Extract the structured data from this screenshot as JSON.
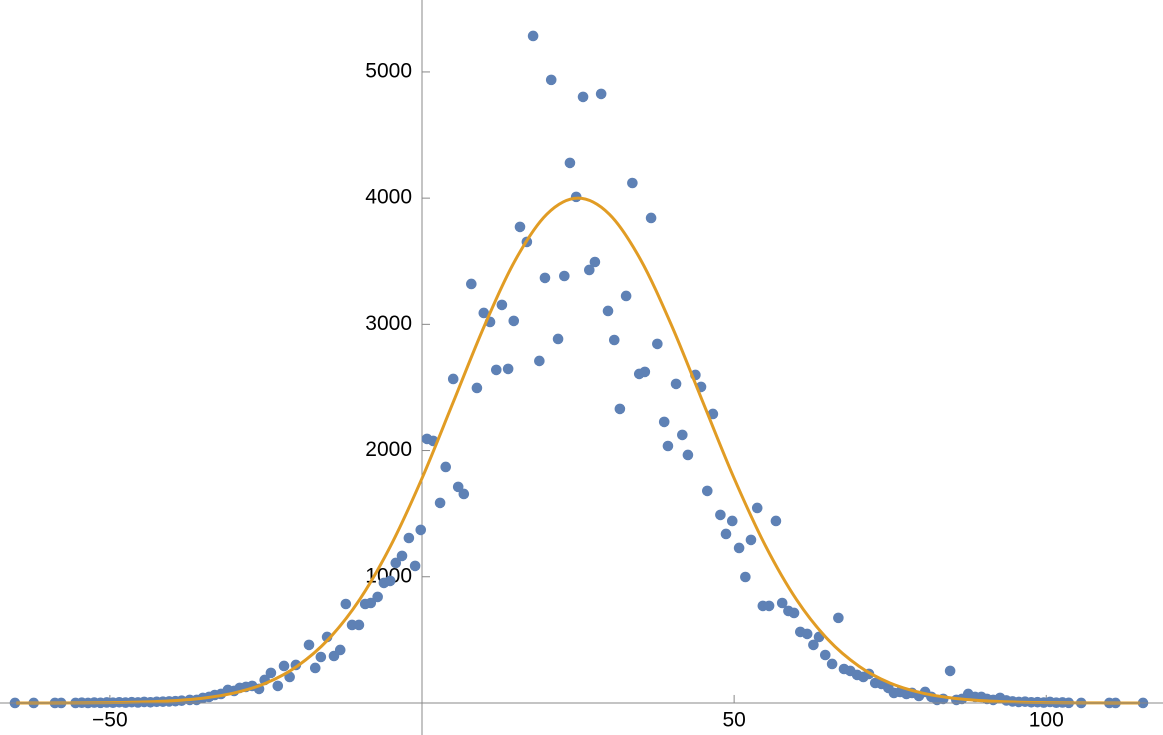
{
  "chart_data": {
    "type": "scatter",
    "xlim": [
      -67.6,
      118.7
    ],
    "ylim": [
      -254,
      5570
    ],
    "xticks": [
      {
        "value": -50,
        "label": "−50"
      },
      50,
      100
    ],
    "yticks": [
      1000,
      2000,
      3000,
      4000,
      5000
    ],
    "series": [
      {
        "color": "#5e81b5",
        "x": [
          -65.2,
          -62.2,
          -58.8,
          -57.8,
          -55.5,
          -54.5,
          -53.5,
          -52.5,
          -51.5,
          -50.5,
          -49.5,
          -48.5,
          -47.5,
          -46.5,
          -45.5,
          -44.5,
          -43.5,
          -42.5,
          -41.5,
          -40.5,
          -39.5,
          -38.5,
          -37.2,
          -36.1,
          -35.1,
          -34.1,
          -33.2,
          -32.2,
          -31.1,
          -30.1,
          -29.2,
          -28.2,
          -27.2,
          -26.1,
          -25.2,
          -24.2,
          -23.1,
          -22.1,
          -21.2,
          -20.2,
          -18.1,
          -17.1,
          -16.2,
          -15.2,
          -14.1,
          -13.1,
          -12.2,
          -11.2,
          -10.1,
          -9.1,
          -8.2,
          -7.1,
          -6.1,
          -5.1,
          -4.2,
          -3.2,
          -2.1,
          -1.1,
          -0.2,
          0.8,
          1.8,
          2.9,
          3.8,
          5.0,
          5.8,
          6.7,
          7.9,
          8.8,
          9.9,
          10.9,
          11.9,
          12.8,
          13.8,
          14.7,
          15.7,
          16.8,
          17.8,
          18.8,
          19.7,
          20.7,
          21.8,
          22.8,
          23.7,
          24.7,
          25.8,
          26.8,
          27.7,
          28.7,
          29.8,
          30.8,
          31.7,
          32.7,
          33.7,
          34.8,
          35.7,
          36.7,
          37.7,
          38.8,
          39.4,
          40.7,
          41.7,
          42.6,
          43.8,
          44.7,
          45.7,
          46.6,
          47.8,
          48.7,
          49.7,
          50.8,
          51.8,
          52.7,
          53.7,
          54.6,
          55.6,
          56.7,
          57.7,
          58.7,
          59.6,
          60.6,
          61.7,
          62.7,
          63.6,
          64.6,
          65.7,
          66.7,
          67.6,
          68.6,
          69.7,
          70.7,
          71.6,
          72.6,
          73.6,
          74.7,
          75.6,
          76.6,
          77.6,
          78.5,
          79.6,
          80.6,
          81.6,
          82.5,
          83.5,
          84.6,
          85.6,
          86.5,
          87.5,
          88.6,
          89.6,
          90.5,
          91.5,
          92.6,
          93.6,
          94.6,
          95.6,
          96.6,
          97.6,
          98.6,
          99.6,
          100.6,
          101.6,
          102.6,
          103.6,
          105.6,
          110.1,
          111.1,
          115.5
        ],
        "values": [
          0,
          0,
          0,
          0,
          0,
          2,
          0,
          3,
          1,
          4,
          2,
          5,
          3,
          6,
          4,
          8,
          5,
          9,
          10,
          12,
          14,
          18,
          24,
          24,
          40,
          48,
          63,
          71,
          103,
          95,
          119,
          127,
          135,
          111,
          182,
          238,
          135,
          293,
          206,
          301,
          460,
          277,
          364,
          523,
          372,
          420,
          784,
          618,
          618,
          784,
          792,
          840,
          951,
          967,
          1109,
          1165,
          1307,
          1086,
          1371,
          2092,
          2076,
          1585,
          1870,
          2567,
          1712,
          1656,
          3320,
          2496,
          3090,
          3019,
          2639,
          3154,
          2647,
          3027,
          3772,
          3653,
          5285,
          2710,
          3368,
          4937,
          2884,
          3383,
          4279,
          4010,
          4802,
          3431,
          3494,
          4826,
          3106,
          2876,
          2330,
          3225,
          4120,
          2607,
          2623,
          3843,
          2845,
          2227,
          2036,
          2528,
          2124,
          1965,
          2599,
          2504,
          1680,
          2290,
          1490,
          1339,
          1442,
          1228,
          998,
          1292,
          1545,
          769,
          769,
          1442,
          792,
          729,
          713,
          563,
          547,
          460,
          523,
          380,
          309,
          674,
          269,
          254,
          222,
          206,
          230,
          158,
          151,
          119,
          79,
          87,
          71,
          79,
          55,
          87,
          48,
          24,
          32,
          254,
          24,
          32,
          71,
          48,
          48,
          32,
          24,
          40,
          20,
          12,
          8,
          10,
          5,
          6,
          3,
          8,
          2,
          4,
          1,
          0,
          0,
          0,
          0
        ]
      },
      {
        "type": "line",
        "color": "#e19c24",
        "x": [
          -65,
          -60,
          -55,
          -50,
          -45,
          -40,
          -35,
          -30,
          -25,
          -20,
          -15,
          -10,
          -5,
          0,
          5,
          10,
          15,
          20,
          25,
          30,
          35,
          40,
          45,
          50,
          55,
          60,
          65,
          70,
          75,
          80,
          85,
          90,
          95,
          100,
          105,
          110,
          115
        ],
        "values": [
          0,
          0,
          1,
          3,
          7,
          17,
          38,
          80,
          157,
          291,
          504,
          818,
          1247,
          1780,
          2383,
          2989,
          3514,
          3873,
          4000,
          3873,
          3514,
          2989,
          2383,
          1780,
          1247,
          818,
          504,
          291,
          157,
          80,
          38,
          17,
          7,
          3,
          1,
          0,
          0
        ]
      }
    ]
  }
}
